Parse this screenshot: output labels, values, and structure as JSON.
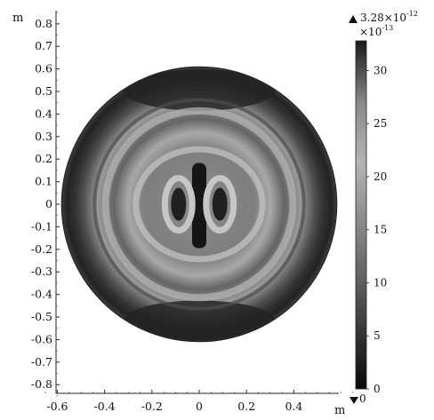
{
  "chart_data": {
    "type": "heatmap",
    "title": "",
    "x_unit": "m",
    "y_unit": "m",
    "xlim": [
      -0.65,
      0.65
    ],
    "ylim": [
      -0.87,
      0.88
    ],
    "x_ticks": [
      -0.6,
      -0.4,
      -0.2,
      0,
      0.2,
      0.4
    ],
    "x_tick_labels": [
      "-0.6",
      "-0.4",
      "-0.2",
      "0",
      "0.2",
      "0.4"
    ],
    "y_ticks": [
      0.8,
      0.7,
      0.6,
      0.5,
      0.4,
      0.3,
      0.2,
      0.1,
      0,
      -0.1,
      -0.2,
      -0.3,
      -0.4,
      -0.5,
      -0.6,
      -0.7,
      -0.8
    ],
    "y_tick_labels": [
      "0.8",
      "0.7",
      "0.6",
      "0.5",
      "0.4",
      "0.3",
      "0.2",
      "0.1",
      "0",
      "-0.1",
      "-0.2",
      "-0.3",
      "-0.4",
      "-0.5",
      "-0.6",
      "-0.7",
      "-0.8"
    ],
    "domain": {
      "shape": "disk",
      "center": [
        0,
        0
      ],
      "radius": 0.6
    },
    "colorbar": {
      "max_label": "3.28×10",
      "max_exp": "-12",
      "scale_label": "×10",
      "scale_exp": "-13",
      "min_label": "0",
      "range": [
        0,
        32.8
      ],
      "ticks": [
        0,
        5,
        10,
        15,
        20,
        25,
        30
      ],
      "tick_labels": [
        "0",
        "5",
        "10",
        "15",
        "20",
        "25",
        "30"
      ],
      "colormap": "grayscale"
    }
  }
}
